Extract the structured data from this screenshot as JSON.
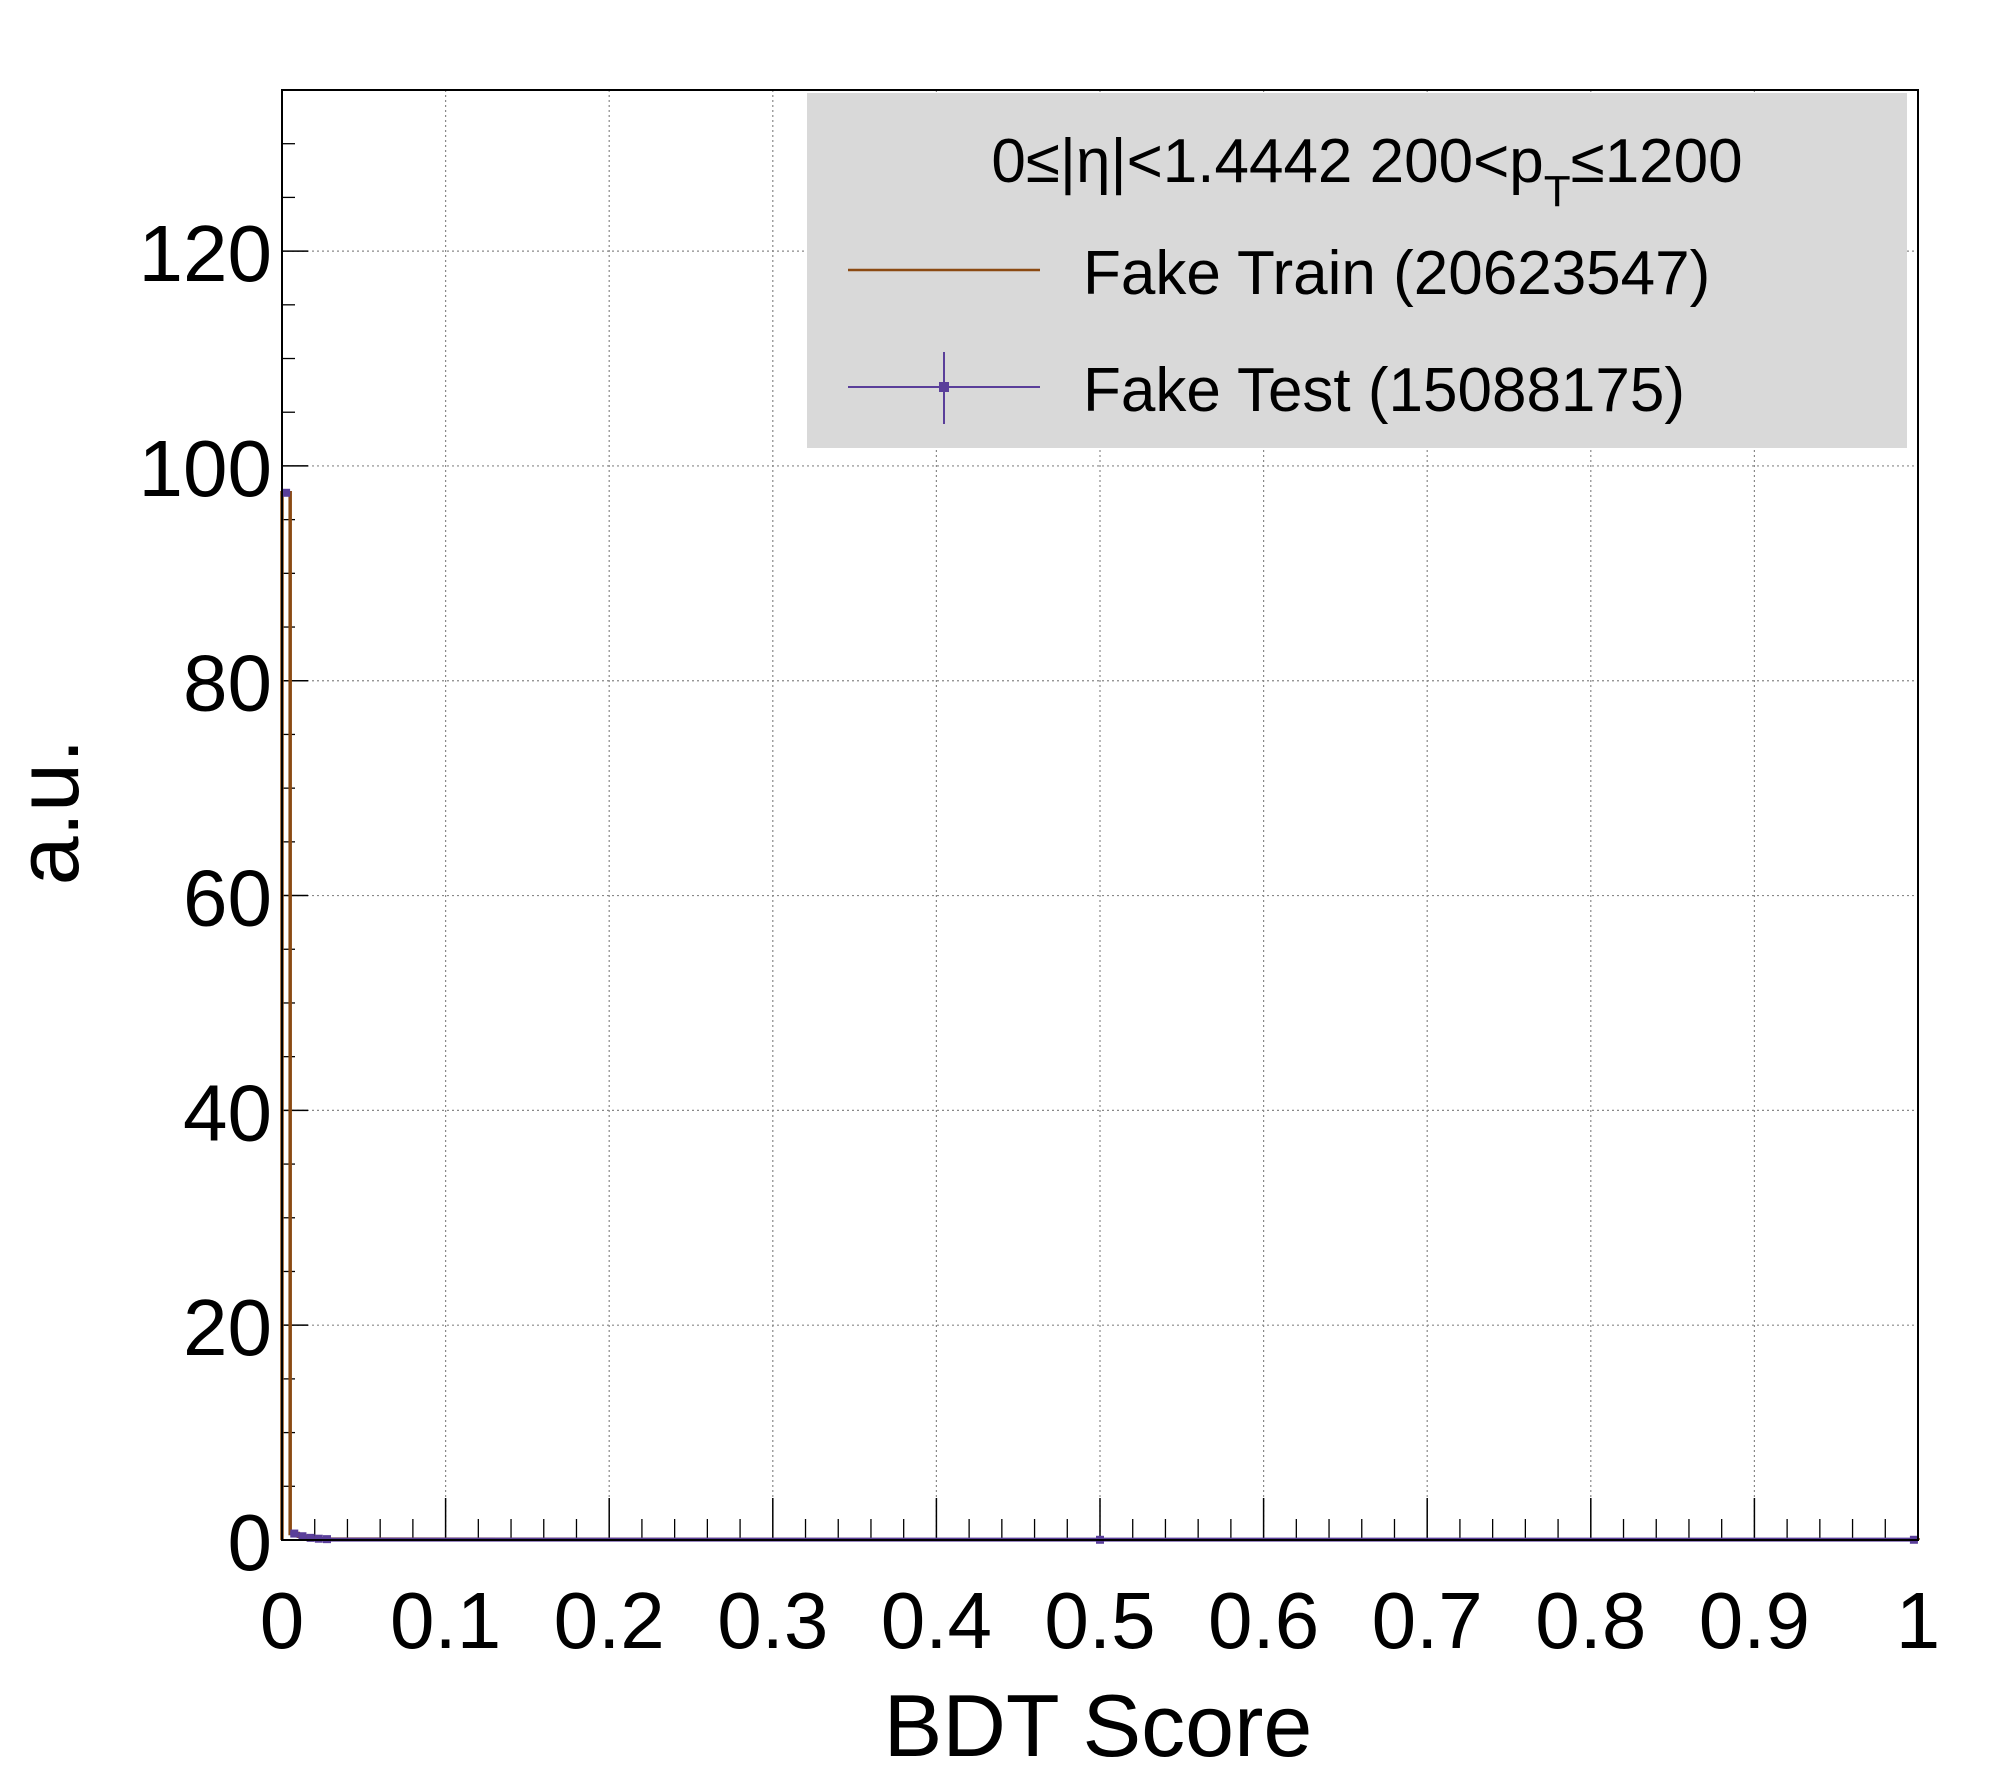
{
  "colors": {
    "background": "#ffffff",
    "legend_fill": "#d9d9d9",
    "train": "#8b4a12",
    "test": "#5a3f9a",
    "grid": "#888888",
    "axis": "#000000"
  },
  "legend": {
    "header": {
      "prefix": "0≤|η|<1.4442  200<p",
      "subscript": "T",
      "suffix": "≤1200"
    },
    "entries": [
      {
        "label": "Fake Train (20623547)",
        "style": "line",
        "color": "#8b4a12"
      },
      {
        "label": "Fake Test (15088175)",
        "style": "marker-errorbar",
        "color": "#5a3f9a"
      }
    ]
  },
  "chart_data": {
    "type": "line",
    "title": "",
    "xlabel": "BDT Score",
    "ylabel": "a.u.",
    "xlim": [
      0,
      1
    ],
    "ylim": [
      0,
      135
    ],
    "grid": true,
    "legend_position": "top-right",
    "x_ticks": [
      "0",
      "0.1",
      "0.2",
      "0.3",
      "0.4",
      "0.5",
      "0.6",
      "0.7",
      "0.8",
      "0.9",
      "1"
    ],
    "y_ticks": [
      "0",
      "20",
      "40",
      "60",
      "80",
      "100",
      "120"
    ],
    "bin_width": 0.005,
    "series": [
      {
        "name": "Fake Train (20623547)",
        "style": "histogram-step",
        "color": "#8b4a12",
        "bin_centers": [
          0.0025,
          0.0075,
          0.0125,
          0.0175,
          0.0225,
          0.0275,
          0.5,
          0.9975
        ],
        "values": [
          97.5,
          0.6,
          0.35,
          0.2,
          0.12,
          0.08,
          0.02,
          0.02
        ]
      },
      {
        "name": "Fake Test (15088175)",
        "style": "points",
        "color": "#5a3f9a",
        "bin_centers": [
          0.0025,
          0.0075,
          0.0125,
          0.0175,
          0.0225,
          0.0275,
          0.5,
          0.9975
        ],
        "values": [
          97.5,
          0.6,
          0.35,
          0.2,
          0.12,
          0.08,
          0.02,
          0.02
        ]
      }
    ]
  }
}
